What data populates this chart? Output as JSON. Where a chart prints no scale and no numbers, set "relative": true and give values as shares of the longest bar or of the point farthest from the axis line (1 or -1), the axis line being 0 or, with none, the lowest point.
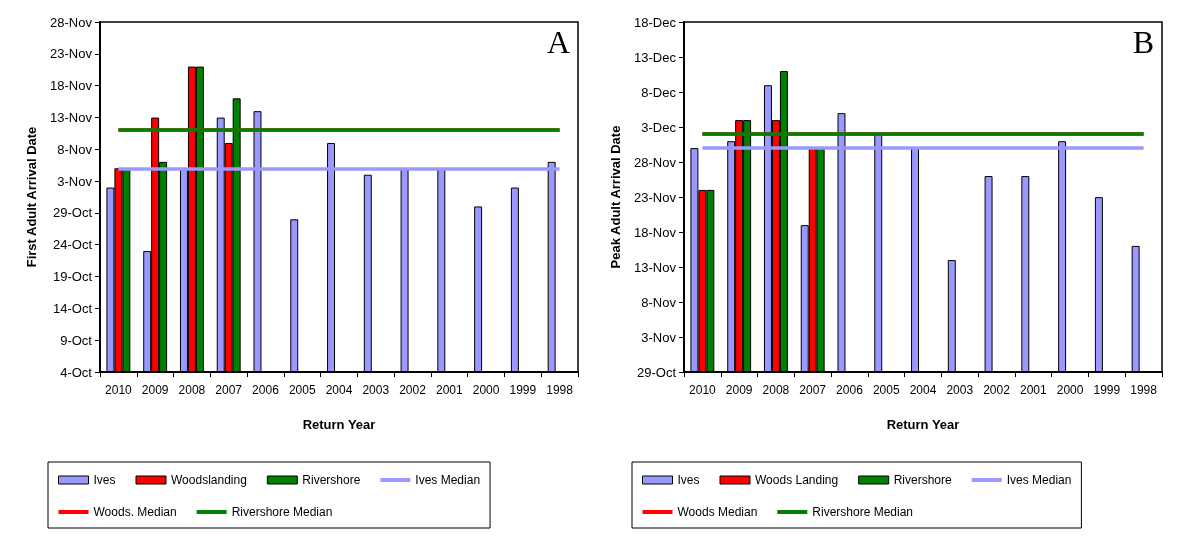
{
  "chart_data": [
    {
      "type": "bar",
      "relative": true,
      "xlabel": "Return Year",
      "ylabel": "First Adult Arrival Date",
      "categories": [
        "2010",
        "2009",
        "2008",
        "2007",
        "2006",
        "2005",
        "2004",
        "2003",
        "2002",
        "2001",
        "2000",
        "1999",
        "1998"
      ],
      "annotations": [
        "A",
        "4-Oct",
        "9-Oct",
        "14-Oct",
        "19-Oct",
        "24-Oct",
        "29-Oct",
        "3-Nov",
        "8-Nov",
        "13-Nov",
        "18-Nov",
        "23-Nov",
        "28-Nov"
      ],
      "series": [
        {
          "name": "Ives",
          "color": "#9999ff",
          "values": [
            0.604,
            0.396,
            0.667,
            0.833,
            0.854,
            0.5,
            0.75,
            0.646,
            0.667,
            0.667,
            0.542,
            0.604,
            0.688
          ]
        },
        {
          "name": "Woodslanding",
          "color": "#ff0000",
          "values": [
            0.667,
            0.833,
            1,
            0.75,
            null,
            null,
            null,
            null,
            null,
            null,
            null,
            null,
            null
          ]
        },
        {
          "name": "Rivershore",
          "color": "#008000",
          "values": [
            0.667,
            0.688,
            1,
            0.896,
            null,
            null,
            null,
            null,
            null,
            null,
            null,
            null,
            null
          ]
        }
      ],
      "ref_lines": [
        {
          "axis": "y",
          "value": 0.667,
          "label": "Ives Median",
          "color": "#9999ff"
        },
        {
          "axis": "y",
          "value": 0.792,
          "label": "Woods. Median",
          "color": "#ff0000"
        },
        {
          "axis": "y",
          "value": 0.792,
          "label": "Rivershore Median",
          "color": "#008000"
        }
      ],
      "ylim": [
        0,
        1.146
      ],
      "grid": false,
      "legend": "bottom"
    },
    {
      "type": "bar",
      "relative": true,
      "xlabel": "Return Year",
      "ylabel": "Peak Adult Arrival Date",
      "categories": [
        "2010",
        "2009",
        "2008",
        "2007",
        "2006",
        "2005",
        "2004",
        "2003",
        "2002",
        "2001",
        "2000",
        "1999",
        "1998"
      ],
      "annotations": [
        "B",
        "29-Oct",
        "3-Nov",
        "8-Nov",
        "13-Nov",
        "18-Nov",
        "23-Nov",
        "28-Nov",
        "3-Dec",
        "8-Dec",
        "13-Dec",
        "18-Dec"
      ],
      "series": [
        {
          "name": "Ives",
          "color": "#9999ff",
          "values": [
            0.744,
            0.767,
            0.953,
            0.488,
            0.86,
            0.791,
            0.744,
            0.372,
            0.651,
            0.651,
            0.767,
            0.581,
            0.419
          ]
        },
        {
          "name": "Woods Landing",
          "color": "#ff0000",
          "values": [
            0.605,
            0.837,
            0.837,
            0.744,
            null,
            null,
            null,
            null,
            null,
            null,
            null,
            null,
            null
          ]
        },
        {
          "name": "Rivershore",
          "color": "#008000",
          "values": [
            0.605,
            0.837,
            1,
            0.744,
            null,
            null,
            null,
            null,
            null,
            null,
            null,
            null,
            null
          ]
        }
      ],
      "ref_lines": [
        {
          "axis": "y",
          "value": 0.744,
          "label": "Ives Median",
          "color": "#9999ff"
        },
        {
          "axis": "y",
          "value": 0.791,
          "label": "Woods Median",
          "color": "#ff0000"
        },
        {
          "axis": "y",
          "value": 0.791,
          "label": "Rivershore Median",
          "color": "#008000"
        }
      ],
      "ylim": [
        0,
        1.163
      ],
      "grid": false,
      "legend": "bottom"
    }
  ]
}
